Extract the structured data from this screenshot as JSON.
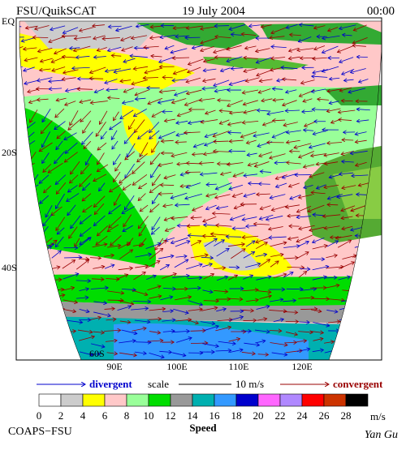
{
  "header": {
    "left": "FSU/QuikSCAT",
    "center": "19 July 2004",
    "right": "00:00"
  },
  "map": {
    "lat_labels": [
      "EQ",
      "20S",
      "40S",
      "60S"
    ],
    "lon_labels": [
      "90E",
      "100E",
      "110E",
      "120E"
    ]
  },
  "legend": {
    "divergent": "divergent",
    "scale": "scale",
    "scale_value": "10 m/s",
    "convergent": "convergent"
  },
  "colorbar": {
    "ticks": [
      0,
      2,
      4,
      6,
      8,
      10,
      12,
      14,
      16,
      18,
      20,
      22,
      24,
      26,
      28
    ],
    "colors": [
      "#ffffff",
      "#cccccc",
      "#ffff00",
      "#ffc8c8",
      "#99ff99",
      "#00dd00",
      "#999999",
      "#00b0b0",
      "#3399ff",
      "#0000cc",
      "#ff66ff",
      "#b088ff",
      "#ff0000",
      "#cc3300",
      "#000000"
    ],
    "unit": "m/s",
    "label": "Speed"
  },
  "footer": {
    "left": "COAPS−FSU",
    "right": "Yan Gu"
  }
}
